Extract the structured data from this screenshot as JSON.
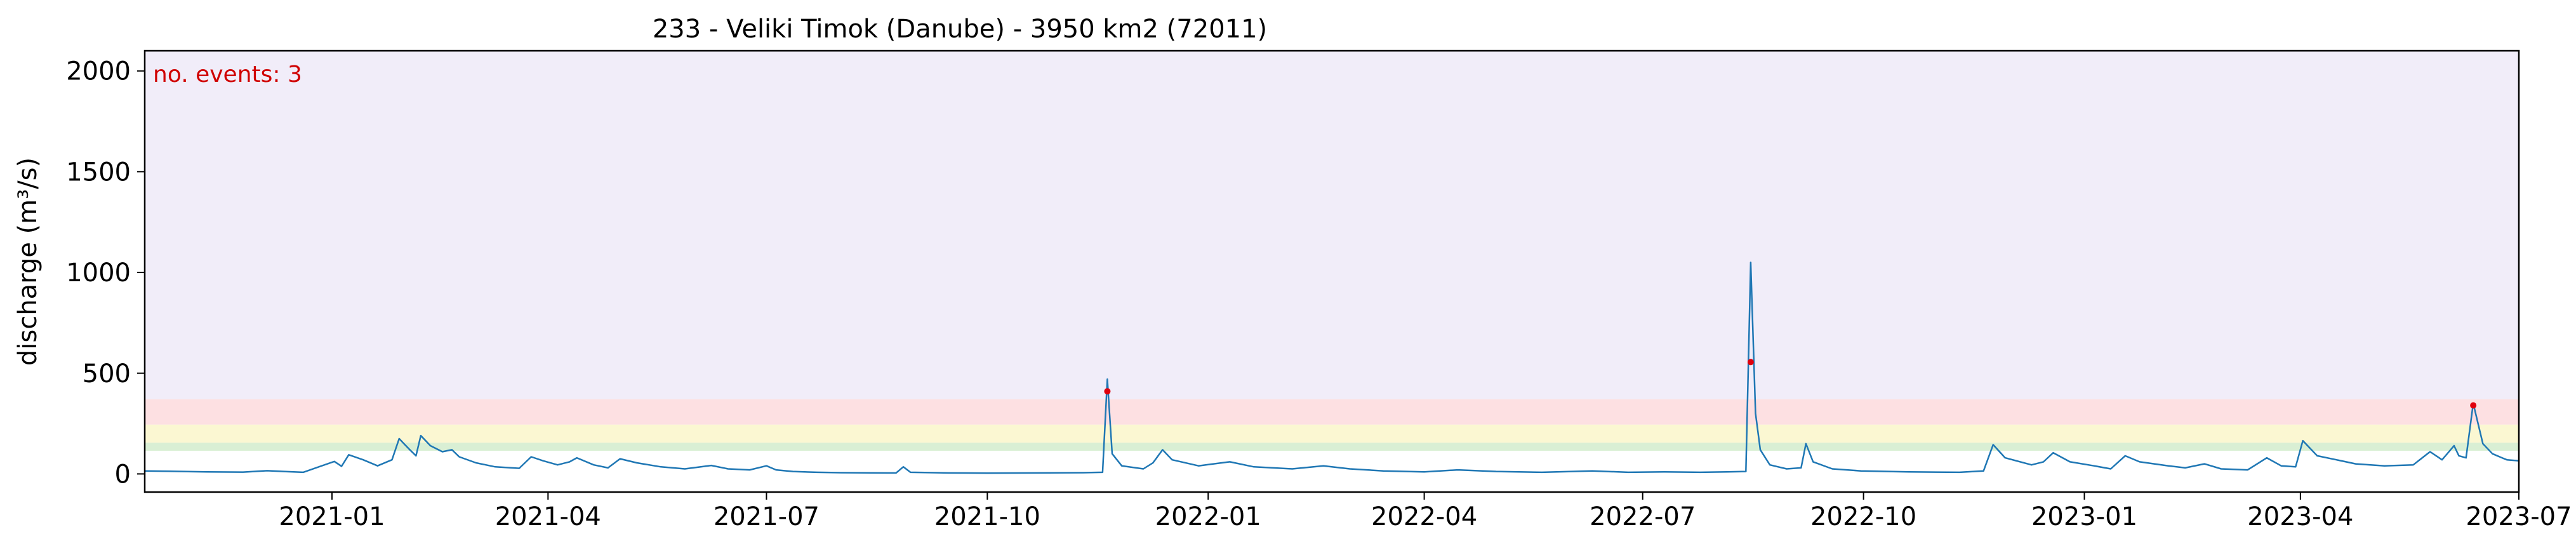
{
  "chart_data": {
    "type": "line",
    "title": "233 - Veliki Timok (Danube) - 3950 km2 (72011)",
    "xlabel": "",
    "ylabel": "discharge (m³/s)",
    "x_range": [
      "2020-10-15",
      "2023-07-01"
    ],
    "ylim": [
      -90,
      2100
    ],
    "y_ticks": [
      0,
      500,
      1000,
      1500,
      2000
    ],
    "x_ticks": [
      {
        "date": "2021-01-01",
        "label": "2021-01"
      },
      {
        "date": "2021-04-01",
        "label": "2021-04"
      },
      {
        "date": "2021-07-01",
        "label": "2021-07"
      },
      {
        "date": "2021-10-01",
        "label": "2021-10"
      },
      {
        "date": "2022-01-01",
        "label": "2022-01"
      },
      {
        "date": "2022-04-01",
        "label": "2022-04"
      },
      {
        "date": "2022-07-01",
        "label": "2022-07"
      },
      {
        "date": "2022-10-01",
        "label": "2022-10"
      },
      {
        "date": "2023-01-01",
        "label": "2023-01"
      },
      {
        "date": "2023-04-01",
        "label": "2023-04"
      },
      {
        "date": "2023-07-01",
        "label": "2023-07"
      }
    ],
    "threshold_bands": [
      {
        "name": "green",
        "from": 115,
        "to": 155,
        "color": "#d9efd4"
      },
      {
        "name": "yellow",
        "from": 155,
        "to": 245,
        "color": "#fbf7d2"
      },
      {
        "name": "red",
        "from": 245,
        "to": 370,
        "color": "#fde0e2"
      },
      {
        "name": "purple",
        "from": 370,
        "to": 2100,
        "color": "#f1edf9"
      }
    ],
    "annotation": {
      "text": "no. events: 3",
      "color": "#d00000"
    },
    "line_color": "#1f77b4",
    "event_color": "#e0000d",
    "series": [
      {
        "name": "discharge",
        "points": [
          [
            "2020-10-15",
            15
          ],
          [
            "2020-10-25",
            13
          ],
          [
            "2020-11-10",
            10
          ],
          [
            "2020-11-25",
            9
          ],
          [
            "2020-12-05",
            16
          ],
          [
            "2020-12-12",
            12
          ],
          [
            "2020-12-20",
            8
          ],
          [
            "2021-01-02",
            62
          ],
          [
            "2021-01-05",
            38
          ],
          [
            "2021-01-08",
            95
          ],
          [
            "2021-01-14",
            70
          ],
          [
            "2021-01-20",
            40
          ],
          [
            "2021-01-26",
            70
          ],
          [
            "2021-01-29",
            175
          ],
          [
            "2021-02-02",
            125
          ],
          [
            "2021-02-05",
            90
          ],
          [
            "2021-02-07",
            190
          ],
          [
            "2021-02-11",
            140
          ],
          [
            "2021-02-16",
            110
          ],
          [
            "2021-02-20",
            120
          ],
          [
            "2021-02-23",
            85
          ],
          [
            "2021-03-02",
            55
          ],
          [
            "2021-03-10",
            35
          ],
          [
            "2021-03-20",
            28
          ],
          [
            "2021-03-25",
            85
          ],
          [
            "2021-03-30",
            65
          ],
          [
            "2021-04-05",
            45
          ],
          [
            "2021-04-10",
            60
          ],
          [
            "2021-04-13",
            80
          ],
          [
            "2021-04-20",
            45
          ],
          [
            "2021-04-26",
            30
          ],
          [
            "2021-05-01",
            75
          ],
          [
            "2021-05-08",
            55
          ],
          [
            "2021-05-18",
            35
          ],
          [
            "2021-05-28",
            25
          ],
          [
            "2021-06-08",
            42
          ],
          [
            "2021-06-15",
            25
          ],
          [
            "2021-06-24",
            20
          ],
          [
            "2021-07-01",
            40
          ],
          [
            "2021-07-05",
            20
          ],
          [
            "2021-07-12",
            12
          ],
          [
            "2021-07-22",
            8
          ],
          [
            "2021-08-01",
            6
          ],
          [
            "2021-08-24",
            5
          ],
          [
            "2021-08-27",
            35
          ],
          [
            "2021-08-30",
            8
          ],
          [
            "2021-09-15",
            5
          ],
          [
            "2021-10-01",
            4
          ],
          [
            "2021-10-20",
            5
          ],
          [
            "2021-11-10",
            6
          ],
          [
            "2021-11-18",
            8
          ],
          [
            "2021-11-20",
            470
          ],
          [
            "2021-11-22",
            100
          ],
          [
            "2021-11-26",
            40
          ],
          [
            "2021-12-05",
            25
          ],
          [
            "2021-12-09",
            55
          ],
          [
            "2021-12-13",
            120
          ],
          [
            "2021-12-17",
            70
          ],
          [
            "2021-12-28",
            40
          ],
          [
            "2022-01-10",
            60
          ],
          [
            "2022-01-20",
            35
          ],
          [
            "2022-02-05",
            25
          ],
          [
            "2022-02-18",
            40
          ],
          [
            "2022-03-01",
            25
          ],
          [
            "2022-03-15",
            15
          ],
          [
            "2022-04-01",
            10
          ],
          [
            "2022-04-15",
            20
          ],
          [
            "2022-05-01",
            12
          ],
          [
            "2022-05-20",
            8
          ],
          [
            "2022-06-10",
            15
          ],
          [
            "2022-06-25",
            8
          ],
          [
            "2022-07-10",
            10
          ],
          [
            "2022-07-25",
            8
          ],
          [
            "2022-08-05",
            10
          ],
          [
            "2022-08-13",
            12
          ],
          [
            "2022-08-15",
            1050
          ],
          [
            "2022-08-17",
            300
          ],
          [
            "2022-08-19",
            120
          ],
          [
            "2022-08-23",
            45
          ],
          [
            "2022-08-30",
            25
          ],
          [
            "2022-09-05",
            30
          ],
          [
            "2022-09-07",
            150
          ],
          [
            "2022-09-10",
            60
          ],
          [
            "2022-09-18",
            25
          ],
          [
            "2022-09-30",
            15
          ],
          [
            "2022-10-20",
            10
          ],
          [
            "2022-11-10",
            8
          ],
          [
            "2022-11-20",
            15
          ],
          [
            "2022-11-24",
            145
          ],
          [
            "2022-11-29",
            80
          ],
          [
            "2022-12-10",
            45
          ],
          [
            "2022-12-15",
            60
          ],
          [
            "2022-12-19",
            105
          ],
          [
            "2022-12-26",
            60
          ],
          [
            "2023-01-05",
            40
          ],
          [
            "2023-01-12",
            25
          ],
          [
            "2023-01-18",
            90
          ],
          [
            "2023-01-24",
            60
          ],
          [
            "2023-02-05",
            40
          ],
          [
            "2023-02-12",
            30
          ],
          [
            "2023-02-20",
            50
          ],
          [
            "2023-02-27",
            25
          ],
          [
            "2023-03-10",
            20
          ],
          [
            "2023-03-18",
            80
          ],
          [
            "2023-03-24",
            40
          ],
          [
            "2023-03-30",
            35
          ],
          [
            "2023-04-02",
            165
          ],
          [
            "2023-04-08",
            90
          ],
          [
            "2023-04-16",
            70
          ],
          [
            "2023-04-24",
            50
          ],
          [
            "2023-05-06",
            40
          ],
          [
            "2023-05-18",
            45
          ],
          [
            "2023-05-25",
            110
          ],
          [
            "2023-05-30",
            70
          ],
          [
            "2023-06-04",
            140
          ],
          [
            "2023-06-06",
            90
          ],
          [
            "2023-06-09",
            80
          ],
          [
            "2023-06-12",
            350
          ],
          [
            "2023-06-16",
            150
          ],
          [
            "2023-06-20",
            100
          ],
          [
            "2023-06-24",
            80
          ],
          [
            "2023-06-26",
            70
          ],
          [
            "2023-07-01",
            65
          ]
        ]
      }
    ],
    "events": [
      {
        "date": "2021-11-20",
        "value": 410
      },
      {
        "date": "2022-08-15",
        "value": 555
      },
      {
        "date": "2023-06-12",
        "value": 340
      }
    ]
  }
}
